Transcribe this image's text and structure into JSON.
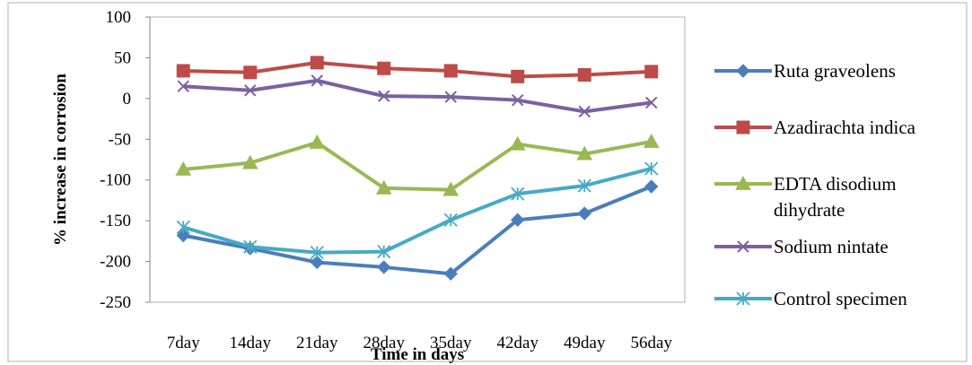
{
  "chart_data": {
    "type": "line",
    "title": "",
    "xlabel": "Time in days",
    "ylabel": "% increase in corrosion",
    "categories": [
      "7day",
      "14day",
      "21day",
      "28day",
      "35day",
      "42day",
      "49day",
      "56day"
    ],
    "ylim": [
      -250,
      100
    ],
    "yticks": [
      100,
      50,
      0,
      -50,
      -100,
      -150,
      -200,
      -250
    ],
    "grid": false,
    "legend_position": "right",
    "series": [
      {
        "name": "Ruta graveolens",
        "color": "#4a7ebb",
        "marker": "diamond",
        "values": [
          -168,
          -184,
          -201,
          -207,
          -215,
          -149,
          -141,
          -108
        ]
      },
      {
        "name": "Azadirachta indica",
        "color": "#be4b48",
        "marker": "square",
        "values": [
          34,
          32,
          44,
          37,
          34,
          27,
          29,
          33
        ]
      },
      {
        "name": "EDTA disodium dihydrate",
        "color": "#98b954",
        "marker": "triangle",
        "legend_lines": [
          "EDTA disodium",
          "dihydrate"
        ],
        "values": [
          -87,
          -79,
          -54,
          -110,
          -112,
          -56,
          -68,
          -53
        ]
      },
      {
        "name": "Sodium nintate",
        "color": "#7d60a0",
        "marker": "x",
        "values": [
          15,
          10,
          22,
          3,
          2,
          -2,
          -16,
          -5
        ]
      },
      {
        "name": "Control specimen",
        "color": "#46aac5",
        "marker": "asterisk",
        "values": [
          -158,
          -182,
          -189,
          -188,
          -149,
          -117,
          -107,
          -86
        ]
      }
    ]
  }
}
